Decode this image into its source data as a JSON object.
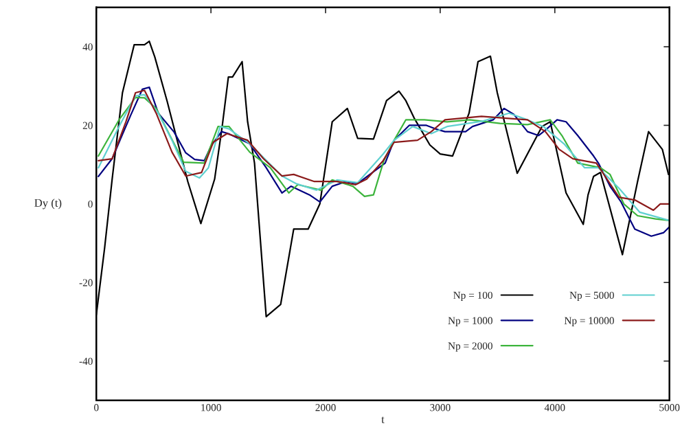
{
  "chart_data": {
    "type": "line",
    "xlabel": "t",
    "ylabel": "Dy (t)",
    "xlim": [
      0,
      5000
    ],
    "ylim": [
      -50,
      50
    ],
    "xticks": [
      0,
      1000,
      2000,
      3000,
      4000,
      5000
    ],
    "yticks": [
      -40,
      -20,
      0,
      20,
      40
    ],
    "grid": false,
    "legend": "bottom right",
    "marker": "none",
    "line_style": "solid",
    "series": [
      {
        "name": "Np = 100",
        "color": "#000000",
        "x": [
          0,
          72,
          138,
          228,
          330,
          420,
          462,
          510,
          618,
          798,
          912,
          1032,
          1098,
          1152,
          1188,
          1272,
          1320,
          1380,
          1482,
          1608,
          1722,
          1848,
          1950,
          2058,
          2190,
          2280,
          2418,
          2532,
          2640,
          2700,
          2772,
          2910,
          3000,
          3108,
          3252,
          3330,
          3438,
          3498,
          3600,
          3672,
          3888,
          3960,
          4098,
          4248,
          4290,
          4338,
          4398,
          4590,
          4722,
          4818,
          4938,
          4992
        ],
        "values": [
          -28.2,
          -11.3,
          6.3,
          28.3,
          40.5,
          40.5,
          41.4,
          37.4,
          26.1,
          5.7,
          -5.0,
          6.3,
          19.7,
          32.3,
          32.3,
          36.2,
          20.9,
          10.4,
          -28.7,
          -25.6,
          -6.4,
          -6.4,
          0,
          20.9,
          24.3,
          16.7,
          16.5,
          26.3,
          28.7,
          26.3,
          21.9,
          15.0,
          12.7,
          12.2,
          23.1,
          36.2,
          37.6,
          28.3,
          16.2,
          7.8,
          19.7,
          20.9,
          2.8,
          -5.2,
          2.3,
          7.0,
          8.0,
          -12.9,
          5.7,
          18.4,
          13.9,
          7.5
        ]
      },
      {
        "name": "Np = 1000",
        "color": "#000080",
        "x": [
          18,
          138,
          210,
          300,
          402,
          462,
          540,
          678,
          780,
          858,
          942,
          1002,
          1092,
          1152,
          1338,
          1482,
          1620,
          1698,
          1860,
          1950,
          2058,
          2178,
          2280,
          2520,
          2598,
          2730,
          2880,
          2958,
          3042,
          3222,
          3282,
          3462,
          3558,
          3642,
          3762,
          3858,
          3918,
          4020,
          4098,
          4200,
          4338,
          4380,
          4482,
          4578,
          4668,
          4698,
          4842,
          4950,
          4998
        ],
        "values": [
          7.0,
          11.5,
          16.5,
          22.6,
          29.2,
          29.7,
          23.1,
          18.3,
          13.0,
          11.3,
          11.0,
          14.8,
          18.4,
          17.9,
          15.3,
          9.2,
          2.8,
          4.5,
          2.3,
          0.5,
          4.5,
          5.7,
          5.2,
          10.4,
          16.2,
          20.0,
          20.0,
          19.1,
          18.4,
          18.4,
          19.7,
          21.4,
          24.3,
          22.8,
          18.4,
          17.4,
          18.8,
          21.4,
          20.9,
          17.4,
          12.2,
          10.4,
          4.5,
          0.5,
          -4.7,
          -6.4,
          -8.2,
          -7.3,
          -5.9
        ]
      },
      {
        "name": "Np = 2000",
        "color": "#3cb43c",
        "x": [
          18,
          198,
          342,
          420,
          522,
          642,
          762,
          942,
          1062,
          1158,
          1338,
          1518,
          1680,
          1758,
          1962,
          2058,
          2238,
          2340,
          2418,
          2508,
          2598,
          2700,
          2862,
          3060,
          3258,
          3522,
          3762,
          3960,
          4062,
          4200,
          4398,
          4482,
          4602,
          4722,
          4878,
          4998
        ],
        "values": [
          12.2,
          21.4,
          27.1,
          27.0,
          24.3,
          17.4,
          10.6,
          10.4,
          19.7,
          19.7,
          13.2,
          9.2,
          2.8,
          4.9,
          3.5,
          6.1,
          4.5,
          1.9,
          2.3,
          11.0,
          16.2,
          21.4,
          21.4,
          20.9,
          21.4,
          20.5,
          20.2,
          21.4,
          17.4,
          10.4,
          9.2,
          7.5,
          0,
          -3.0,
          -3.8,
          -4.2
        ]
      },
      {
        "name": "Np = 5000",
        "color": "#5fd0d0",
        "x": [
          18,
          198,
          342,
          420,
          540,
          660,
          780,
          900,
          978,
          1080,
          1158,
          1338,
          1458,
          1620,
          1740,
          1920,
          2100,
          2280,
          2502,
          2598,
          2760,
          2922,
          3060,
          3360,
          3600,
          3762,
          3900,
          4080,
          4260,
          4380,
          4560,
          4740,
          4998
        ],
        "values": [
          9.2,
          19.7,
          27.5,
          27.8,
          23.1,
          16.2,
          8.3,
          6.6,
          9.2,
          19.7,
          19.1,
          15.3,
          11.8,
          7.1,
          5.2,
          3.5,
          6.1,
          5.4,
          12.7,
          16.2,
          19.7,
          17.9,
          19.7,
          21.0,
          23.1,
          21.4,
          19.7,
          15.3,
          9.2,
          9.2,
          4.0,
          -2.1,
          -4.2
        ]
      },
      {
        "name": "Np = 10000",
        "color": "#8b1a1a",
        "x": [
          18,
          138,
          258,
          342,
          420,
          522,
          660,
          780,
          918,
          1020,
          1140,
          1320,
          1458,
          1620,
          1722,
          1902,
          2100,
          2262,
          2358,
          2502,
          2598,
          2802,
          2922,
          3042,
          3360,
          3762,
          3918,
          4038,
          4158,
          4362,
          4560,
          4698,
          4860,
          4920,
          4998
        ],
        "values": [
          11.0,
          11.5,
          20.9,
          28.3,
          28.9,
          23.1,
          13.2,
          7.1,
          8.0,
          15.7,
          17.9,
          16.2,
          11.5,
          7.1,
          7.5,
          5.7,
          5.7,
          4.9,
          6.3,
          11.0,
          15.7,
          16.2,
          18.4,
          21.4,
          22.3,
          21.4,
          18.4,
          13.9,
          11.5,
          10.4,
          1.7,
          1.0,
          -1.6,
          0,
          0
        ]
      }
    ]
  }
}
